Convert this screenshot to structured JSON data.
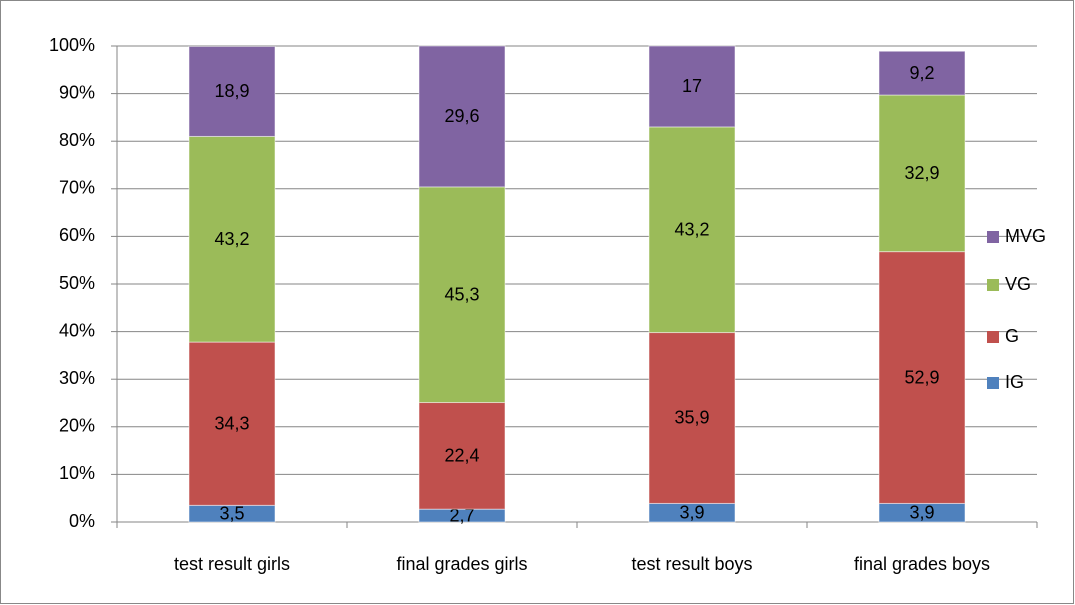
{
  "chart_data": {
    "type": "stacked_bar",
    "categories": [
      "test result girls",
      "final grades girls",
      "test result boys",
      "final grades boys"
    ],
    "series": [
      {
        "name": "IG",
        "color": "#4f81bd",
        "values": [
          3.5,
          2.7,
          3.9,
          3.9
        ],
        "value_labels": [
          "3,5",
          "2,7",
          "3,9",
          "3,9"
        ]
      },
      {
        "name": "G",
        "color": "#c0504d",
        "values": [
          34.3,
          22.4,
          35.9,
          52.9
        ],
        "value_labels": [
          "34,3",
          "22,4",
          "35,9",
          "52,9"
        ]
      },
      {
        "name": "VG",
        "color": "#9bbb59",
        "values": [
          43.2,
          45.3,
          43.2,
          32.9
        ],
        "value_labels": [
          "43,2",
          "45,3",
          "43,2",
          "32,9"
        ]
      },
      {
        "name": "MVG",
        "color": "#8064a2",
        "values": [
          18.9,
          29.6,
          17,
          9.2
        ],
        "value_labels": [
          "18,9",
          "29,6",
          "17",
          "9,2"
        ]
      }
    ],
    "ylim": [
      0,
      100
    ],
    "yticks": [
      {
        "value": 0,
        "label": "0%"
      },
      {
        "value": 10,
        "label": "10%"
      },
      {
        "value": 20,
        "label": "20%"
      },
      {
        "value": 30,
        "label": "30%"
      },
      {
        "value": 40,
        "label": "40%"
      },
      {
        "value": 50,
        "label": "50%"
      },
      {
        "value": 60,
        "label": "60%"
      },
      {
        "value": 70,
        "label": "70%"
      },
      {
        "value": 80,
        "label": "80%"
      },
      {
        "value": 90,
        "label": "90%"
      },
      {
        "value": 100,
        "label": "100%"
      }
    ],
    "grid": true,
    "legend": "right"
  }
}
